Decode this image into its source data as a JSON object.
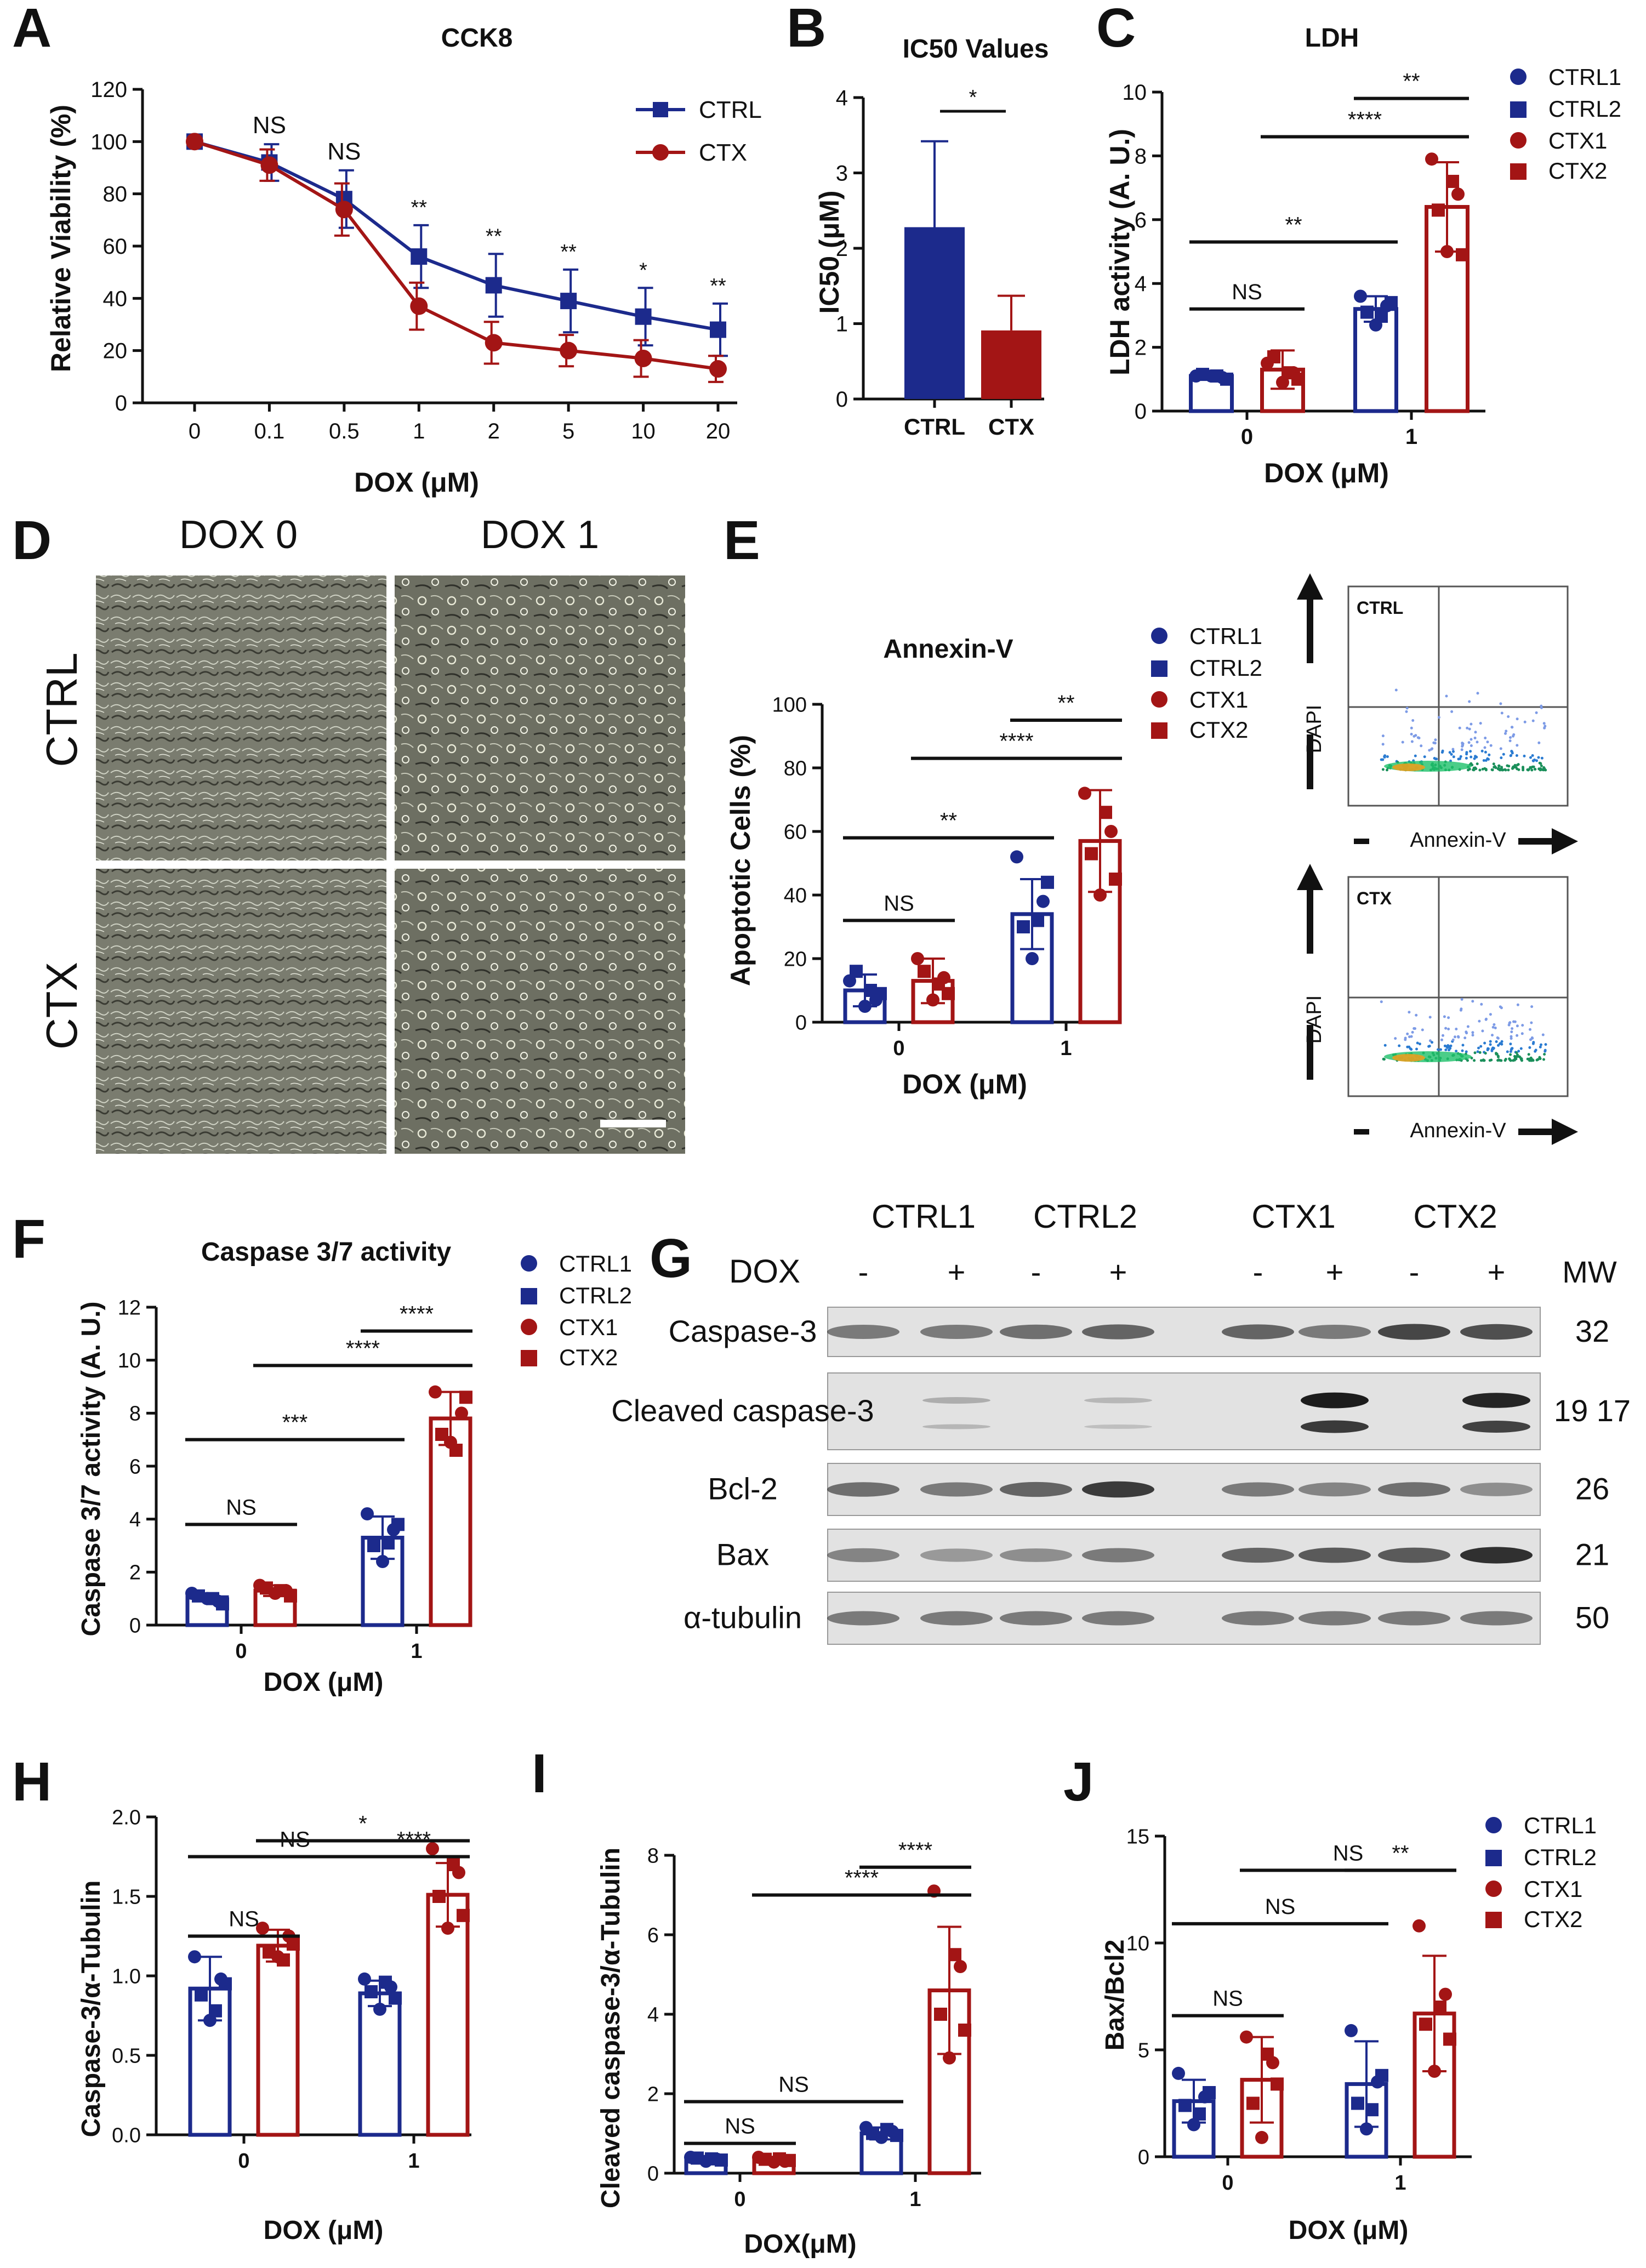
{
  "colors": {
    "ctrl": "#1c2a8c",
    "ctx": "#a31515",
    "black": "#111111",
    "gel": "#e2e2e2"
  },
  "panels": {
    "A": "A",
    "B": "B",
    "C": "C",
    "D": "D",
    "E": "E",
    "F": "F",
    "G": "G",
    "H": "H",
    "I": "I",
    "J": "J"
  },
  "legend_two": [
    "CTRL",
    "CTX"
  ],
  "legend_four": [
    "CTRL1",
    "CTRL2",
    "CTX1",
    "CTX2"
  ],
  "micro": {
    "col_labels": [
      "DOX 0",
      "DOX 1"
    ],
    "row_labels": [
      "CTRL",
      "CTX"
    ]
  },
  "flow": {
    "plots": [
      {
        "label": "CTRL",
        "x_label": "Annexin-V",
        "y_label": "DAPI"
      },
      {
        "label": "CTX",
        "x_label": "Annexin-V",
        "y_label": "DAPI"
      }
    ]
  },
  "western": {
    "groups": [
      "CTRL1",
      "CTRL2",
      "CTX1",
      "CTX2"
    ],
    "dox_label": "DOX",
    "mw_header": "MW",
    "dox_signs": [
      "-",
      "+",
      "-",
      "+",
      "-",
      "+",
      "-",
      "+"
    ],
    "rows": [
      {
        "name": "Caspase-3",
        "mw": "32"
      },
      {
        "name": "Cleaved caspase-3",
        "mw": "19 17"
      },
      {
        "name": "Bcl-2",
        "mw": "26"
      },
      {
        "name": "Bax",
        "mw": "21"
      },
      {
        "name": "α-tubulin",
        "mw": "50"
      }
    ]
  },
  "chart_data": [
    {
      "id": "A",
      "type": "line",
      "title": "CCK8",
      "xlabel": "DOX (μM)",
      "ylabel": "Relative Viability (%)",
      "categories": [
        "0",
        "0.1",
        "0.5",
        "1",
        "2",
        "5",
        "10",
        "20"
      ],
      "ylim": [
        0,
        120
      ],
      "yticks": [
        0,
        20,
        40,
        60,
        80,
        100,
        120
      ],
      "series": [
        {
          "name": "CTRL",
          "values": [
            100,
            92,
            78,
            56,
            45,
            39,
            33,
            28
          ],
          "errors": [
            0,
            7,
            11,
            12,
            12,
            12,
            11,
            10
          ]
        },
        {
          "name": "CTX",
          "values": [
            100,
            91,
            74,
            37,
            23,
            20,
            17,
            13
          ],
          "errors": [
            0,
            6,
            10,
            9,
            8,
            6,
            7,
            5
          ]
        }
      ],
      "annotations": [
        "",
        "NS",
        "NS",
        "**",
        "**",
        "**",
        "*",
        "**"
      ]
    },
    {
      "id": "B",
      "type": "bar",
      "title": "IC50 Values",
      "xlabel": "",
      "ylabel": "IC50 (μM)",
      "categories": [
        "CTRL",
        "CTX"
      ],
      "values": [
        2.28,
        0.91
      ],
      "errors": [
        1.14,
        0.46
      ],
      "ylim": [
        0,
        4
      ],
      "yticks": [
        0,
        1,
        2,
        3,
        4
      ],
      "significance": [
        {
          "from": 0,
          "to": 1,
          "label": "*"
        }
      ]
    },
    {
      "id": "C",
      "type": "bar",
      "title": "LDH",
      "xlabel": "DOX (μM)",
      "ylabel": "LDH activity (A. U.)",
      "categories": [
        "0",
        "1"
      ],
      "ylim": [
        0,
        10
      ],
      "yticks": [
        0,
        2,
        4,
        6,
        8,
        10
      ],
      "series": [
        {
          "name": "CTRL",
          "means": [
            1.1,
            3.2
          ],
          "errors": [
            0.1,
            0.4
          ],
          "points": [
            [
              1.1,
              1.05,
              1.1,
              1.15,
              1.0,
              1.1
            ],
            [
              3.6,
              3.3,
              2.7,
              3.1,
              3.4,
              3.0
            ]
          ]
        },
        {
          "name": "CTX",
          "means": [
            1.3,
            6.4
          ],
          "errors": [
            0.6,
            1.4
          ],
          "points": [
            [
              1.5,
              1.2,
              0.9,
              1.7,
              1.0,
              1.2
            ],
            [
              7.9,
              6.8,
              5.0,
              6.3,
              4.9,
              7.2
            ]
          ]
        }
      ],
      "significance": [
        {
          "label": "NS",
          "y": 3.2,
          "from": [
            0,
            0
          ],
          "to": [
            0,
            1
          ]
        },
        {
          "label": "**",
          "y": 5.3,
          "from": [
            0,
            0
          ],
          "to": [
            1,
            0
          ]
        },
        {
          "label": "****",
          "y": 8.6,
          "from": [
            0,
            1
          ],
          "to": [
            1,
            1
          ]
        },
        {
          "label": "**",
          "y": 9.8,
          "from": [
            1,
            0
          ],
          "to": [
            1,
            1
          ]
        }
      ]
    },
    {
      "id": "E",
      "type": "bar",
      "title": "Annexin-V",
      "xlabel": "DOX (μM)",
      "ylabel": "Apoptotic Cells (%)",
      "categories": [
        "0",
        "1"
      ],
      "ylim": [
        0,
        100
      ],
      "yticks": [
        0,
        20,
        40,
        60,
        80,
        100
      ],
      "series": [
        {
          "name": "CTRL",
          "means": [
            10,
            34
          ],
          "errors": [
            5,
            11
          ],
          "points": [
            [
              13,
              7,
              5,
              16,
              9,
              10
            ],
            [
              52,
              38,
              20,
              30,
              44,
              32
            ]
          ]
        },
        {
          "name": "CTX",
          "means": [
            13,
            57
          ],
          "errors": [
            7,
            16
          ],
          "points": [
            [
              20,
              14,
              7,
              16,
              9,
              12
            ],
            [
              72,
              60,
              40,
              53,
              45,
              66
            ]
          ]
        }
      ],
      "significance": [
        {
          "label": "NS",
          "y": 32,
          "from": [
            0,
            0
          ],
          "to": [
            0,
            1
          ]
        },
        {
          "label": "**",
          "y": 58,
          "from": [
            0,
            0
          ],
          "to": [
            1,
            0
          ]
        },
        {
          "label": "****",
          "y": 83,
          "from": [
            0,
            1
          ],
          "to": [
            1,
            1
          ]
        },
        {
          "label": "**",
          "y": 95,
          "from": [
            1,
            0
          ],
          "to": [
            1,
            1
          ]
        }
      ]
    },
    {
      "id": "F",
      "type": "bar",
      "title": "Caspase 3/7 activity",
      "xlabel": "DOX (μM)",
      "ylabel": "Caspase 3/7 activity (A. U.)",
      "categories": [
        "0",
        "1"
      ],
      "ylim": [
        0,
        12
      ],
      "yticks": [
        0,
        2,
        4,
        6,
        8,
        10,
        12
      ],
      "series": [
        {
          "name": "CTRL",
          "means": [
            1.05,
            3.3
          ],
          "errors": [
            0.15,
            0.8
          ],
          "points": [
            [
              1.2,
              0.9,
              1.0,
              1.1,
              0.8,
              1.0
            ],
            [
              4.2,
              3.6,
              2.4,
              3.0,
              3.8,
              3.1
            ]
          ]
        },
        {
          "name": "CTX",
          "means": [
            1.3,
            7.8
          ],
          "errors": [
            0.2,
            1.0
          ],
          "points": [
            [
              1.5,
              1.3,
              1.2,
              1.4,
              1.1,
              1.3
            ],
            [
              8.8,
              8.0,
              6.9,
              7.2,
              8.6,
              6.6
            ]
          ]
        }
      ],
      "significance": [
        {
          "label": "NS",
          "y": 3.8,
          "from": [
            0,
            0
          ],
          "to": [
            0,
            1
          ]
        },
        {
          "label": "***",
          "y": 7.0,
          "from": [
            0,
            0
          ],
          "to": [
            1,
            0
          ]
        },
        {
          "label": "****",
          "y": 9.8,
          "from": [
            0,
            1
          ],
          "to": [
            1,
            1
          ]
        },
        {
          "label": "****",
          "y": 11.1,
          "from": [
            1,
            0
          ],
          "to": [
            1,
            1
          ]
        }
      ]
    },
    {
      "id": "H",
      "type": "bar",
      "title": "",
      "xlabel": "DOX (μM)",
      "ylabel": "Caspase-3/α-Tubulin",
      "categories": [
        "0",
        "1"
      ],
      "ylim": [
        0,
        2.0
      ],
      "yticks": [
        0.0,
        0.5,
        1.0,
        1.5,
        2.0
      ],
      "series": [
        {
          "name": "CTRL",
          "means": [
            0.92,
            0.89
          ],
          "errors": [
            0.2,
            0.08
          ],
          "points": [
            [
              1.12,
              0.98,
              0.72,
              0.88,
              0.95,
              0.78
            ],
            [
              0.98,
              0.93,
              0.79,
              0.9,
              0.86,
              0.96
            ]
          ]
        },
        {
          "name": "CTX",
          "means": [
            1.19,
            1.51
          ],
          "errors": [
            0.1,
            0.2
          ],
          "points": [
            [
              1.3,
              1.25,
              1.12,
              1.15,
              1.2,
              1.1
            ],
            [
              1.8,
              1.65,
              1.3,
              1.5,
              1.38,
              1.7
            ]
          ]
        }
      ],
      "significance": [
        {
          "label": "NS",
          "y": 1.25,
          "from": [
            0,
            0
          ],
          "to": [
            0,
            1
          ]
        },
        {
          "label": "NS",
          "y": 1.75,
          "from": [
            0,
            0
          ],
          "to": [
            1,
            0
          ]
        },
        {
          "label": "*",
          "y": 1.85,
          "from": [
            0,
            1
          ],
          "to": [
            1,
            1
          ]
        },
        {
          "label": "****",
          "y": 1.75,
          "from": [
            1,
            0
          ],
          "to": [
            1,
            1
          ]
        }
      ]
    },
    {
      "id": "I",
      "type": "bar",
      "title": "",
      "xlabel": "DOX(μM)",
      "ylabel": "Cleaved caspase-3/α-Tubulin",
      "categories": [
        "0",
        "1"
      ],
      "ylim": [
        0,
        8
      ],
      "yticks": [
        0,
        2,
        4,
        6,
        8
      ],
      "series": [
        {
          "name": "CTRL",
          "means": [
            0.35,
            1.0
          ],
          "errors": [
            0.05,
            0.15
          ],
          "points": [
            [
              0.4,
              0.35,
              0.3,
              0.38,
              0.33,
              0.36
            ],
            [
              1.15,
              1.05,
              0.9,
              1.0,
              0.95,
              1.1
            ]
          ]
        },
        {
          "name": "CTX",
          "means": [
            0.33,
            4.6
          ],
          "errors": [
            0.05,
            1.6
          ],
          "points": [
            [
              0.4,
              0.3,
              0.28,
              0.35,
              0.32,
              0.36
            ],
            [
              7.1,
              5.2,
              2.9,
              4.0,
              3.6,
              5.5
            ]
          ]
        }
      ],
      "significance": [
        {
          "label": "NS",
          "y": 0.75,
          "from": [
            0,
            0
          ],
          "to": [
            0,
            1
          ]
        },
        {
          "label": "NS",
          "y": 1.8,
          "from": [
            0,
            0
          ],
          "to": [
            1,
            0
          ]
        },
        {
          "label": "****",
          "y": 7.0,
          "from": [
            0,
            1
          ],
          "to": [
            1,
            1
          ]
        },
        {
          "label": "****",
          "y": 7.7,
          "from": [
            1,
            0
          ],
          "to": [
            1,
            1
          ]
        }
      ]
    },
    {
      "id": "J",
      "type": "bar",
      "title": "",
      "xlabel": "DOX (μM)",
      "ylabel": "Bax/Bcl2",
      "categories": [
        "0",
        "1"
      ],
      "ylim": [
        0,
        15
      ],
      "yticks": [
        0,
        5,
        10,
        15
      ],
      "series": [
        {
          "name": "CTRL",
          "means": [
            2.6,
            3.4
          ],
          "errors": [
            1.0,
            2.0
          ],
          "points": [
            [
              3.9,
              2.8,
              1.5,
              2.4,
              3.0,
              2.0
            ],
            [
              5.9,
              3.5,
              1.3,
              2.5,
              3.8,
              2.2
            ]
          ]
        },
        {
          "name": "CTX",
          "means": [
            3.6,
            6.7
          ],
          "errors": [
            2.0,
            2.7
          ],
          "points": [
            [
              5.6,
              4.4,
              0.9,
              2.5,
              3.4,
              4.8
            ],
            [
              10.8,
              7.6,
              4.0,
              6.2,
              5.5,
              7.0
            ]
          ]
        }
      ],
      "significance": [
        {
          "label": "NS",
          "y": 6.6,
          "from": [
            0,
            0
          ],
          "to": [
            0,
            1
          ]
        },
        {
          "label": "NS",
          "y": 10.9,
          "from": [
            0,
            0
          ],
          "to": [
            1,
            0
          ]
        },
        {
          "label": "NS",
          "y": 13.4,
          "from": [
            0,
            1
          ],
          "to": [
            1,
            1
          ]
        },
        {
          "label": "**",
          "y": 13.4,
          "from": [
            1,
            0
          ],
          "to": [
            1,
            1
          ]
        }
      ]
    }
  ]
}
